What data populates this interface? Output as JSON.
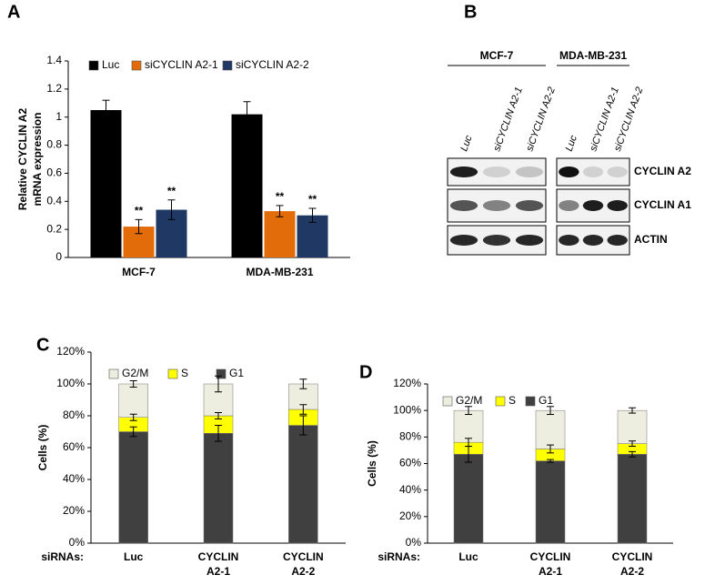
{
  "chart_data": [
    {
      "type": "bar",
      "panel": "A",
      "y_label": [
        "Relative CYCLIN A2",
        "mRNA expression"
      ],
      "categories": [
        "MCF-7",
        "MDA-MB-231"
      ],
      "series": [
        {
          "name": "Luc",
          "color": "#000000",
          "values": [
            1.05,
            1.02
          ],
          "errors": [
            0.07,
            0.09
          ]
        },
        {
          "name": "siCYCLIN A2-1",
          "color": "#e36c0a",
          "values": [
            0.22,
            0.33
          ],
          "errors": [
            0.05,
            0.04
          ],
          "significance": [
            "**",
            "**"
          ]
        },
        {
          "name": "siCYCLIN A2-2",
          "color": "#1f3864",
          "values": [
            0.34,
            0.3
          ],
          "errors": [
            0.07,
            0.05
          ],
          "significance": [
            "**",
            "**"
          ]
        }
      ],
      "ylim": [
        0,
        1.4
      ],
      "yticks": [
        0,
        0.2,
        0.4,
        0.6,
        0.8,
        1,
        1.2,
        1.4
      ]
    },
    {
      "type": "stacked_bar",
      "panel": "C",
      "y_label": "Cells (%)",
      "x_label": "siRNAs:",
      "categories": [
        [
          "Luc"
        ],
        [
          "CYCLIN",
          "A2-1"
        ],
        [
          "CYCLIN",
          "A2-2"
        ]
      ],
      "series": [
        {
          "name": "G1",
          "color": "#404040",
          "values": [
            70,
            69,
            74
          ],
          "errors": [
            3,
            5,
            6
          ]
        },
        {
          "name": "S",
          "color": "#ffff00",
          "values": [
            9,
            11,
            10
          ],
          "errors": [
            2,
            2,
            3
          ]
        },
        {
          "name": "G2/M",
          "color": "#eeeee0",
          "values": [
            21,
            20,
            16
          ],
          "errors": [
            2,
            5,
            3
          ]
        }
      ],
      "ylim": [
        0,
        120
      ],
      "yticks": [
        {
          "value": 0,
          "label": "0%"
        },
        {
          "value": 20,
          "label": "20%"
        },
        {
          "value": 40,
          "label": "40%"
        },
        {
          "value": 60,
          "label": "60%"
        },
        {
          "value": 80,
          "label": "80%"
        },
        {
          "value": 100,
          "label": "100%"
        },
        {
          "value": 120,
          "label": "120%"
        }
      ]
    },
    {
      "type": "stacked_bar",
      "panel": "D",
      "y_label": "Cells (%)",
      "x_label": "siRNAs:",
      "categories": [
        [
          "Luc"
        ],
        [
          "CYCLIN",
          "A2-1"
        ],
        [
          "CYCLIN",
          "A2-2"
        ]
      ],
      "series": [
        {
          "name": "G1",
          "color": "#404040",
          "values": [
            67,
            62,
            67
          ],
          "errors": [
            6,
            1,
            2
          ]
        },
        {
          "name": "S",
          "color": "#ffff00",
          "values": [
            9,
            9,
            8
          ],
          "errors": [
            3,
            3,
            2
          ]
        },
        {
          "name": "G2/M",
          "color": "#eeeee0",
          "values": [
            24,
            29,
            25
          ],
          "errors": [
            3,
            3,
            2
          ]
        }
      ],
      "ylim": [
        0,
        120
      ],
      "yticks": [
        {
          "value": 0,
          "label": "0%"
        },
        {
          "value": 20,
          "label": "20%"
        },
        {
          "value": 40,
          "label": "40%"
        },
        {
          "value": 60,
          "label": "60%"
        },
        {
          "value": 80,
          "label": "80%"
        },
        {
          "value": 100,
          "label": "100%"
        },
        {
          "value": 120,
          "label": "120%"
        }
      ]
    }
  ],
  "blot": {
    "panel": "B",
    "groups": [
      {
        "name": "MCF-7",
        "lanes": [
          "Luc",
          "siCYCLIN A2-1",
          "siCYCLIN A2-2"
        ]
      },
      {
        "name": "MDA-MB-231",
        "lanes": [
          "Luc",
          "siCYCLIN A2-1",
          "siCYCLIN A2-2"
        ]
      }
    ],
    "proteins": [
      "CYCLIN A2",
      "CYCLIN A1",
      "ACTIN"
    ]
  }
}
